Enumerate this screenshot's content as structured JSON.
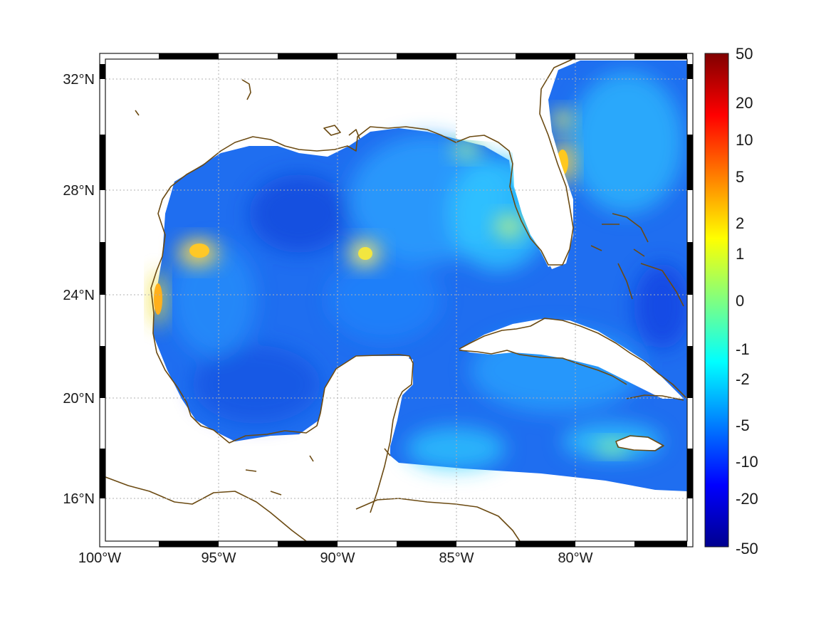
{
  "map": {
    "lon_range": [
      -100,
      -75
    ],
    "lat_range": [
      14.3,
      33
    ],
    "lat_ticks": [
      {
        "value": 32,
        "label": "32°N"
      },
      {
        "value": 28,
        "label": "28°N"
      },
      {
        "value": 24,
        "label": "24°N"
      },
      {
        "value": 20,
        "label": "20°N"
      },
      {
        "value": 16,
        "label": "16°N"
      }
    ],
    "lon_ticks": [
      {
        "value": -100,
        "label": "100°W"
      },
      {
        "value": -95,
        "label": "95°W"
      },
      {
        "value": -90,
        "label": "90°W"
      },
      {
        "value": -85,
        "label": "85°W"
      },
      {
        "value": -80,
        "label": "80°W"
      }
    ],
    "grid": "dotted",
    "coastline_color": "#6b4a12",
    "frame": "alternating black-white"
  },
  "colorbar": {
    "colormap": "jet",
    "labels": [
      "50",
      "20",
      "10",
      "5",
      "2",
      "1",
      "0",
      "-1",
      "-2",
      "-5",
      "-10",
      "-20",
      "-50"
    ]
  },
  "field_hotspots": [
    {
      "region": "western Gulf (Tamaulipas coast)",
      "lon": -97.8,
      "lat": 23.8,
      "approx_value": 2
    },
    {
      "region": "western Gulf",
      "lon": -95.7,
      "lat": 25.7,
      "approx_value": 2
    },
    {
      "region": "central Gulf",
      "lon": -88.9,
      "lat": 25.6,
      "approx_value": 1
    },
    {
      "region": "Florida Atlantic coast",
      "lon": -80.6,
      "lat": 28.9,
      "approx_value": 2
    },
    {
      "region": "Southwest Florida",
      "lon": -83.0,
      "lat": 26.8,
      "approx_value": 0
    },
    {
      "region": "Atlantic off Georgia",
      "lon": -80.8,
      "lat": 30.6,
      "approx_value": 0
    },
    {
      "region": "south of Jamaica",
      "lon": -78.5,
      "lat": 18.0,
      "approx_value": 0
    }
  ]
}
